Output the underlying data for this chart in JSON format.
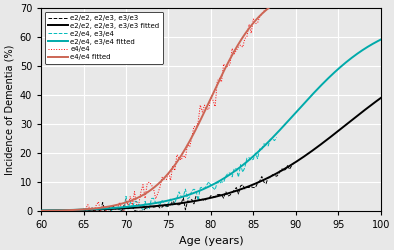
{
  "xlabel": "Age (years)",
  "ylabel": "Incidence of Dementia (%)",
  "xlim": [
    60,
    100
  ],
  "ylim": [
    0,
    70
  ],
  "yticks": [
    0,
    10,
    20,
    30,
    40,
    50,
    60,
    70
  ],
  "xticks": [
    60,
    65,
    70,
    75,
    80,
    85,
    90,
    95,
    100
  ],
  "figsize": [
    3.94,
    2.5
  ],
  "dpi": 100,
  "background_color": "#e8e8e8",
  "grid_color": "white",
  "groups": [
    {
      "label_raw": "e2/e2, e2/e3, e3/e3",
      "label_fit": "e2/e2, e2/e3, e3/e3 fitted",
      "raw_color": "black",
      "fit_color": "black",
      "linestyle_raw": "--",
      "linestyle_fit": "-",
      "logistic_k": 0.155,
      "logistic_x0": 96,
      "scale": 60,
      "noise_scale": 0.8,
      "raw_lw": 0.7,
      "fit_lw": 1.4,
      "x_raw_start": 65,
      "x_raw_end": 90
    },
    {
      "label_raw": "e2/e4, e3/e4",
      "label_fit": "e2/e4, e3/e4 fitted",
      "raw_color": "#00BBBB",
      "fit_color": "#00AAAA",
      "linestyle_raw": "--",
      "linestyle_fit": "-",
      "logistic_k": 0.19,
      "logistic_x0": 90,
      "scale": 68,
      "noise_scale": 1.2,
      "raw_lw": 0.7,
      "fit_lw": 1.4,
      "x_raw_start": 68,
      "x_raw_end": 88
    },
    {
      "label_raw": "e4/e4",
      "label_fit": "e4/e4 fitted",
      "raw_color": "red",
      "fit_color": "#CC6655",
      "linestyle_raw": ":",
      "linestyle_fit": "-",
      "logistic_k": 0.32,
      "logistic_x0": 80,
      "scale": 78,
      "noise_scale": 2.0,
      "raw_lw": 0.7,
      "fit_lw": 1.4,
      "x_raw_start": 65,
      "x_raw_end": 87
    }
  ]
}
